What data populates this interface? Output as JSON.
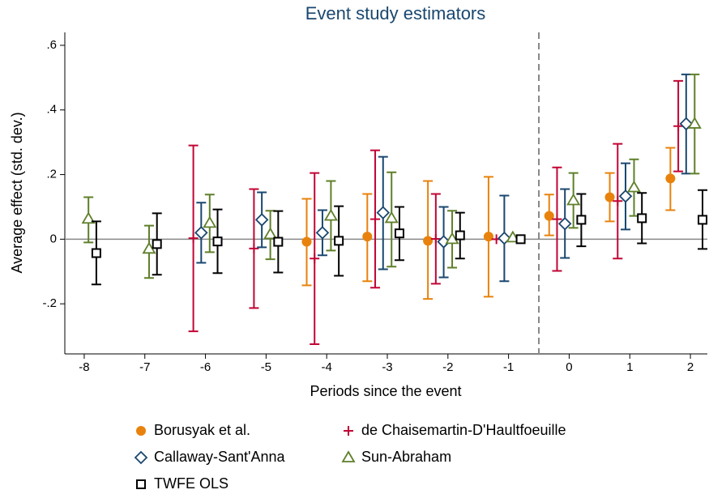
{
  "chart_data": {
    "type": "errorbar",
    "title": "Event study estimators",
    "x_label": "Periods since the event",
    "y_label": "Average effect (std. dev.)",
    "x": [
      -8,
      -7,
      -6,
      -5,
      -4,
      -3,
      -2,
      -1,
      0,
      1,
      2
    ],
    "xlim": [
      -8.32,
      2.28
    ],
    "xticks": [
      -8,
      -7,
      -6,
      -5,
      -4,
      -3,
      -2,
      -1,
      0,
      1,
      2
    ],
    "ylim": [
      -0.355,
      0.64
    ],
    "yticks": [
      {
        "value": -0.2,
        "label": "-.2"
      },
      0,
      {
        "value": 0.2,
        "label": ".2"
      },
      {
        "value": 0.4,
        "label": ".4"
      },
      {
        "value": 0.6,
        "label": ".6"
      }
    ],
    "vline": -0.5,
    "hline": 0,
    "series": [
      {
        "name": "Borusyak et al.",
        "color": "#e8820c",
        "marker": "circle",
        "values": [
          null,
          null,
          null,
          null,
          -0.008,
          0.008,
          -0.005,
          0.008,
          0.072,
          0.13,
          0.188
        ],
        "lower": [
          null,
          null,
          null,
          null,
          -0.143,
          -0.13,
          -0.185,
          -0.178,
          0.012,
          0.055,
          0.09
        ],
        "upper": [
          null,
          null,
          null,
          null,
          0.125,
          0.14,
          0.18,
          0.193,
          0.138,
          0.205,
          0.283
        ]
      },
      {
        "name": "de Chaisemartin-D'Haultfoeuille",
        "color": "#c10534",
        "marker": "plus",
        "values": [
          null,
          null,
          0.003,
          -0.029,
          -0.06,
          0.062,
          0.001,
          0,
          0.062,
          0.118,
          0.35
        ],
        "lower": [
          null,
          null,
          -0.285,
          -0.213,
          -0.325,
          -0.15,
          -0.138,
          null,
          -0.098,
          -0.06,
          0.21
        ],
        "upper": [
          null,
          null,
          0.29,
          0.155,
          0.205,
          0.275,
          0.14,
          null,
          0.222,
          0.295,
          0.49
        ]
      },
      {
        "name": "Callaway-Sant'Anna",
        "color": "#1a476f",
        "marker": "diamond",
        "values": [
          null,
          null,
          0.02,
          0.06,
          0.02,
          0.082,
          -0.008,
          0.003,
          0.048,
          0.133,
          0.357
        ],
        "lower": [
          null,
          null,
          -0.073,
          -0.025,
          -0.05,
          -0.093,
          -0.118,
          -0.13,
          -0.058,
          0.03,
          0.203
        ],
        "upper": [
          null,
          null,
          0.113,
          0.145,
          0.09,
          0.255,
          0.1,
          0.135,
          0.155,
          0.235,
          0.51
        ]
      },
      {
        "name": "Sun-Abraham",
        "color": "#5f7f2a",
        "marker": "triangle",
        "values": [
          0.063,
          -0.03,
          0.05,
          0.015,
          0.072,
          0.065,
          0,
          0.005,
          0.12,
          0.16,
          0.357
        ],
        "lower": [
          -0.01,
          -0.12,
          -0.04,
          -0.062,
          -0.035,
          -0.085,
          -0.088,
          null,
          0.035,
          0.072,
          0.203
        ],
        "upper": [
          0.13,
          0.042,
          0.138,
          0.088,
          0.18,
          0.207,
          0.088,
          null,
          0.205,
          0.247,
          0.51
        ]
      },
      {
        "name": "TWFE OLS",
        "color": "#000000",
        "marker": "square",
        "values": [
          -0.043,
          -0.015,
          -0.007,
          -0.008,
          -0.005,
          0.018,
          0.012,
          0,
          0.06,
          0.065,
          0.06
        ],
        "lower": [
          -0.14,
          -0.11,
          -0.105,
          -0.103,
          -0.113,
          -0.065,
          -0.06,
          null,
          -0.022,
          -0.013,
          -0.03
        ],
        "upper": [
          0.055,
          0.08,
          0.092,
          0.087,
          0.102,
          0.1,
          0.082,
          null,
          0.14,
          0.143,
          0.152
        ]
      }
    ]
  }
}
